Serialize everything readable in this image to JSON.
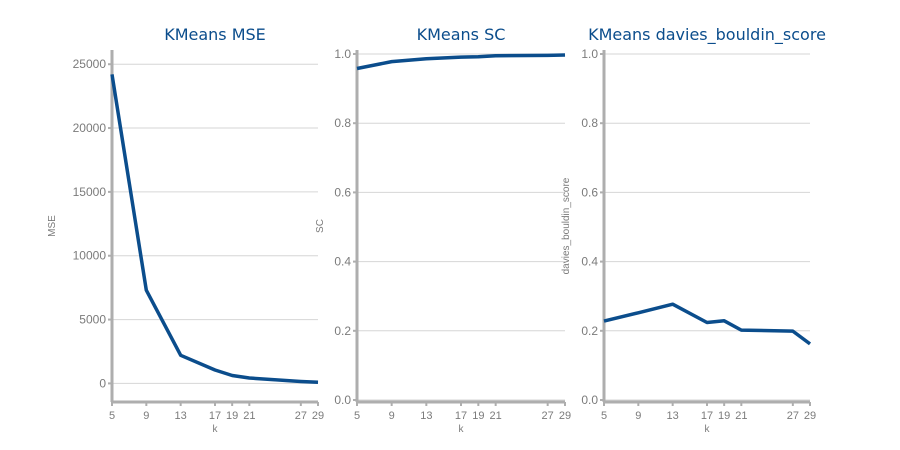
{
  "chart_data": [
    {
      "type": "line",
      "title": "KMeans MSE",
      "xlabel": "k",
      "ylabel": "MSE",
      "x": [
        5,
        9,
        13,
        17,
        19,
        21,
        27,
        29
      ],
      "x_ticks": [
        "5",
        "9",
        "13",
        "17",
        "19",
        "21",
        "27",
        "29"
      ],
      "series": [
        {
          "values": [
            24200,
            7300,
            2200,
            1050,
            620,
            420,
            150,
            90
          ]
        }
      ],
      "ylim": [
        -1300,
        25800
      ],
      "y_ticks": [
        0,
        5000,
        10000,
        15000,
        20000,
        25000
      ],
      "grid": "horizontal",
      "color": "#0b4d8c"
    },
    {
      "type": "line",
      "title": "KMeans SC",
      "xlabel": "k",
      "ylabel": "SC",
      "x": [
        5,
        9,
        13,
        17,
        19,
        21,
        27,
        29
      ],
      "x_ticks": [
        "5",
        "9",
        "13",
        "17",
        "19",
        "21",
        "27",
        "29"
      ],
      "series": [
        {
          "values": [
            0.958,
            0.978,
            0.986,
            0.991,
            0.992,
            0.995,
            0.996,
            0.997
          ]
        }
      ],
      "ylim": [
        0,
        1.0
      ],
      "y_ticks": [
        "0.0",
        "0.2",
        "0.4",
        "0.6",
        "0.8",
        "1.0"
      ],
      "grid": "horizontal",
      "color": "#0b4d8c"
    },
    {
      "type": "line",
      "title": "KMeans davies_bouldin_score",
      "xlabel": "k",
      "ylabel": "davies_bouldin_score",
      "x": [
        5,
        9,
        13,
        17,
        19,
        21,
        27,
        29
      ],
      "x_ticks": [
        "5",
        "9",
        "13",
        "17",
        "19",
        "21",
        "27",
        "29"
      ],
      "series": [
        {
          "values": [
            0.228,
            0.252,
            0.277,
            0.224,
            0.229,
            0.202,
            0.199,
            0.162
          ]
        }
      ],
      "ylim": [
        0,
        1.0
      ],
      "y_ticks": [
        "0.0",
        "0.2",
        "0.4",
        "0.6",
        "0.8",
        "1.0"
      ],
      "grid": "horizontal",
      "color": "#0b4d8c"
    }
  ]
}
